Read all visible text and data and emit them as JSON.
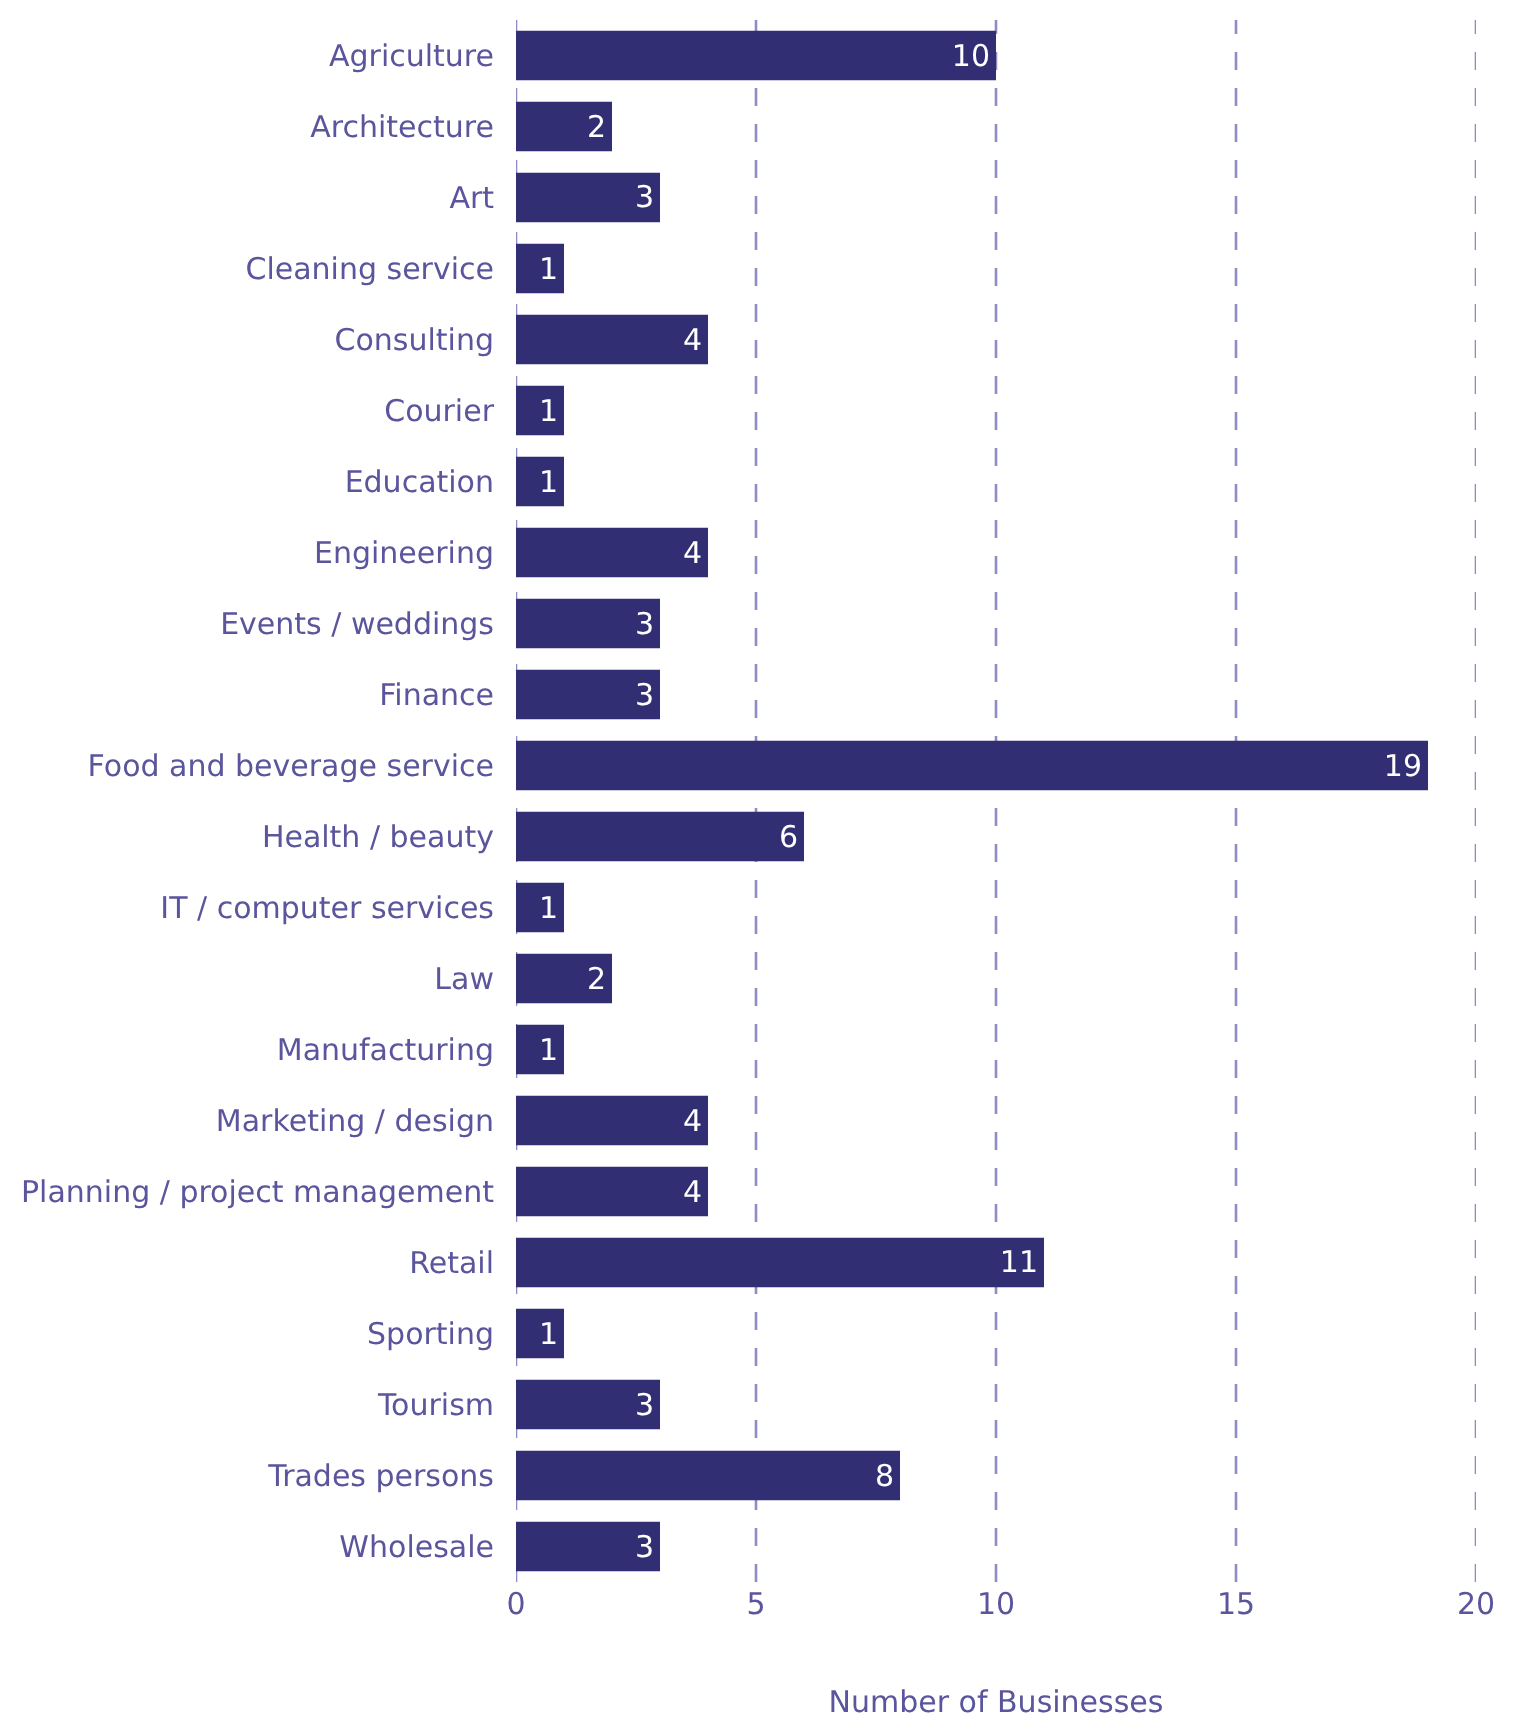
{
  "chart_data": {
    "type": "bar",
    "orientation": "horizontal",
    "xlabel": "Number of Businesses",
    "categories": [
      "Agriculture",
      "Architecture",
      "Art",
      "Cleaning service",
      "Consulting",
      "Courier",
      "Education",
      "Engineering",
      "Events / weddings",
      "Finance",
      "Food and beverage service",
      "Health / beauty",
      "IT / computer services",
      "Law",
      "Manufacturing",
      "Marketing / design",
      "Planning / project management",
      "Retail",
      "Sporting",
      "Tourism",
      "Trades persons",
      "Wholesale"
    ],
    "values": [
      10,
      2,
      3,
      1,
      4,
      1,
      1,
      4,
      3,
      3,
      19,
      6,
      1,
      2,
      1,
      4,
      4,
      11,
      1,
      3,
      8,
      3
    ],
    "color": "#312e74",
    "xlim": [
      0,
      20
    ],
    "xticks": [
      0,
      5,
      10,
      15,
      20
    ],
    "grid": "x",
    "data_labels": true
  }
}
